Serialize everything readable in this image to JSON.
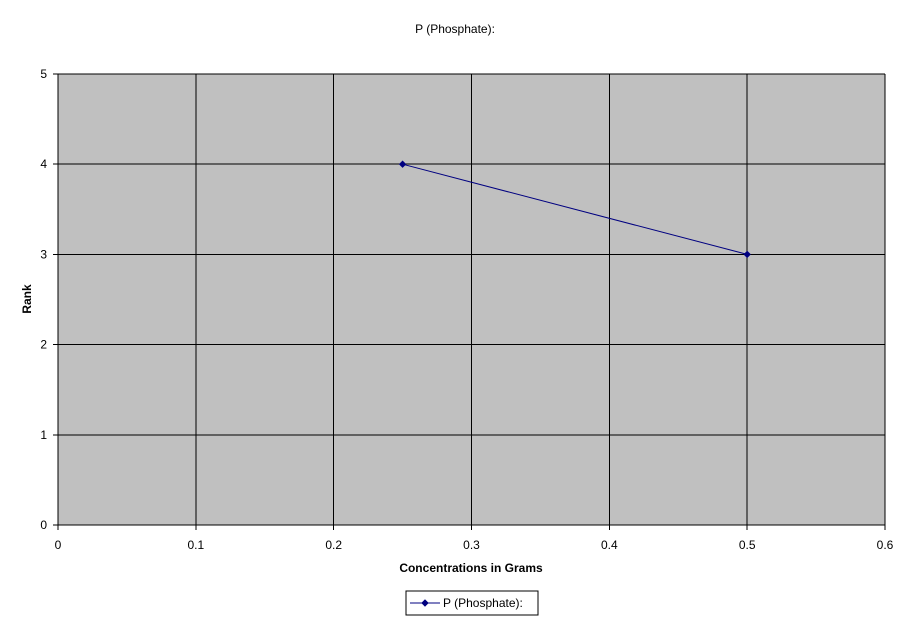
{
  "chart_data": {
    "type": "line",
    "title": "P (Phosphate):",
    "xlabel": "Concentrations in Grams",
    "ylabel": "Rank",
    "xlim": [
      0,
      0.6
    ],
    "ylim": [
      0,
      5
    ],
    "x_ticks": [
      0,
      0.1,
      0.2,
      0.3,
      0.4,
      0.5,
      0.6
    ],
    "x_tick_labels": [
      "0",
      "0.1",
      "0.2",
      "0.3",
      "0.4",
      "0.5",
      "0.6"
    ],
    "y_ticks": [
      0,
      1,
      2,
      3,
      4,
      5
    ],
    "y_tick_labels": [
      "0",
      "1",
      "2",
      "3",
      "4",
      "5"
    ],
    "grid": true,
    "legend_position": "bottom-center",
    "plot_background": "#c0c0c0",
    "grid_color": "#000000",
    "series": [
      {
        "name": "P (Phosphate):",
        "color": "#000080",
        "marker": "diamond",
        "x": [
          0.25,
          0.5
        ],
        "y": [
          4,
          3
        ]
      }
    ]
  }
}
